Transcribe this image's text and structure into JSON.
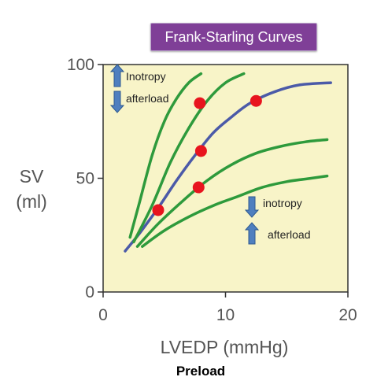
{
  "title": "Frank-Starling Curves",
  "colors": {
    "plot_background": "#f8f4c8",
    "normal_curve": "#4b5aa8",
    "variant_curves": "#2e9a3c",
    "points": "#e8141e",
    "arrows": "#4f7fbf",
    "title_background": "#7f3f97"
  },
  "annotations": {
    "up_label": "Inotropy",
    "down_label": "afterload",
    "lower_down_label": "inotropy",
    "lower_up_label": "afterload"
  },
  "icons": [
    "arrow-up-icon",
    "arrow-down-icon"
  ],
  "chart_data": {
    "type": "line",
    "title": "Frank-Starling Curves",
    "xlabel": "LVEDP (mmHg)",
    "xlabel_sub": "Preload",
    "ylabel": "SV\n(ml)",
    "ylabel_lines": [
      "SV",
      "(ml)"
    ],
    "xlim": [
      0,
      20
    ],
    "ylim": [
      0,
      100
    ],
    "xticks": [
      0,
      10,
      20
    ],
    "yticks": [
      0,
      50,
      100
    ],
    "grid": false,
    "series": [
      {
        "role": "normal",
        "color": "#4b5aa8",
        "x": [
          1.8,
          3,
          4.5,
          6,
          7.5,
          9,
          10.5,
          12,
          14,
          16,
          18.6
        ],
        "y": [
          18,
          26,
          37,
          49,
          60,
          70,
          77,
          83,
          88,
          91,
          92
        ]
      },
      {
        "role": "increased-inotropy-1",
        "color": "#2e9a3c",
        "x": [
          2.2,
          3,
          4,
          5,
          6,
          7,
          8
        ],
        "y": [
          24,
          40,
          60,
          75,
          85,
          92,
          96
        ]
      },
      {
        "role": "increased-inotropy-2",
        "color": "#2e9a3c",
        "x": [
          2.5,
          4,
          5.5,
          7,
          8.5,
          10,
          11.5
        ],
        "y": [
          22,
          38,
          57,
          72,
          84,
          92,
          96
        ]
      },
      {
        "role": "decreased-inotropy-1",
        "color": "#2e9a3c",
        "x": [
          2.8,
          4.5,
          6.5,
          8.5,
          10.5,
          12.5,
          14.5,
          16.5,
          18.3
        ],
        "y": [
          20,
          30,
          40,
          49,
          56,
          61,
          64,
          66,
          67
        ]
      },
      {
        "role": "decreased-inotropy-2",
        "color": "#2e9a3c",
        "x": [
          3.2,
          5,
          7,
          9,
          11,
          13,
          15,
          17,
          18.3
        ],
        "y": [
          20,
          27,
          33,
          38,
          42,
          46,
          48.5,
          50,
          51
        ]
      }
    ],
    "points": [
      {
        "x": 4.5,
        "y": 36
      },
      {
        "x": 7.8,
        "y": 46
      },
      {
        "x": 8,
        "y": 62
      },
      {
        "x": 7.9,
        "y": 83
      },
      {
        "x": 12.5,
        "y": 84
      }
    ]
  }
}
